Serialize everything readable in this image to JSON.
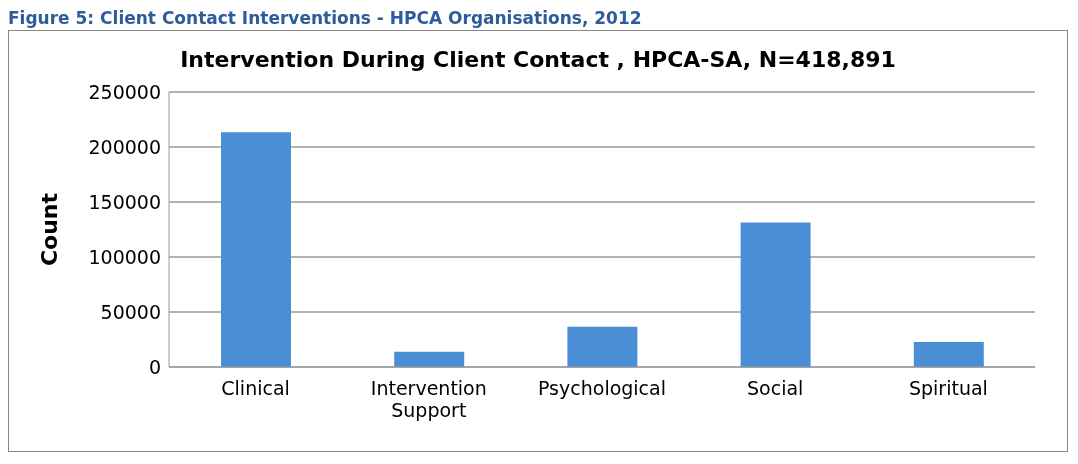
{
  "chart_data": {
    "type": "bar",
    "title": "Intervention During Client Contact , HPCA-SA, N=418,891",
    "annotations": [
      "Figure 5: Client Contact Interventions - HPCA Organisations, 2012"
    ],
    "ylabel": "Count",
    "categories": [
      "Clinical",
      "Intervention Support",
      "Psychological",
      "Social",
      "Spiritual"
    ],
    "values": [
      213400,
      13900,
      36600,
      131400,
      22700
    ],
    "color": "#4a8fd6",
    "ylim": [
      0,
      250000
    ],
    "yticks": [
      0,
      50000,
      100000,
      150000,
      200000,
      250000
    ],
    "grid": "y",
    "legend": false
  }
}
